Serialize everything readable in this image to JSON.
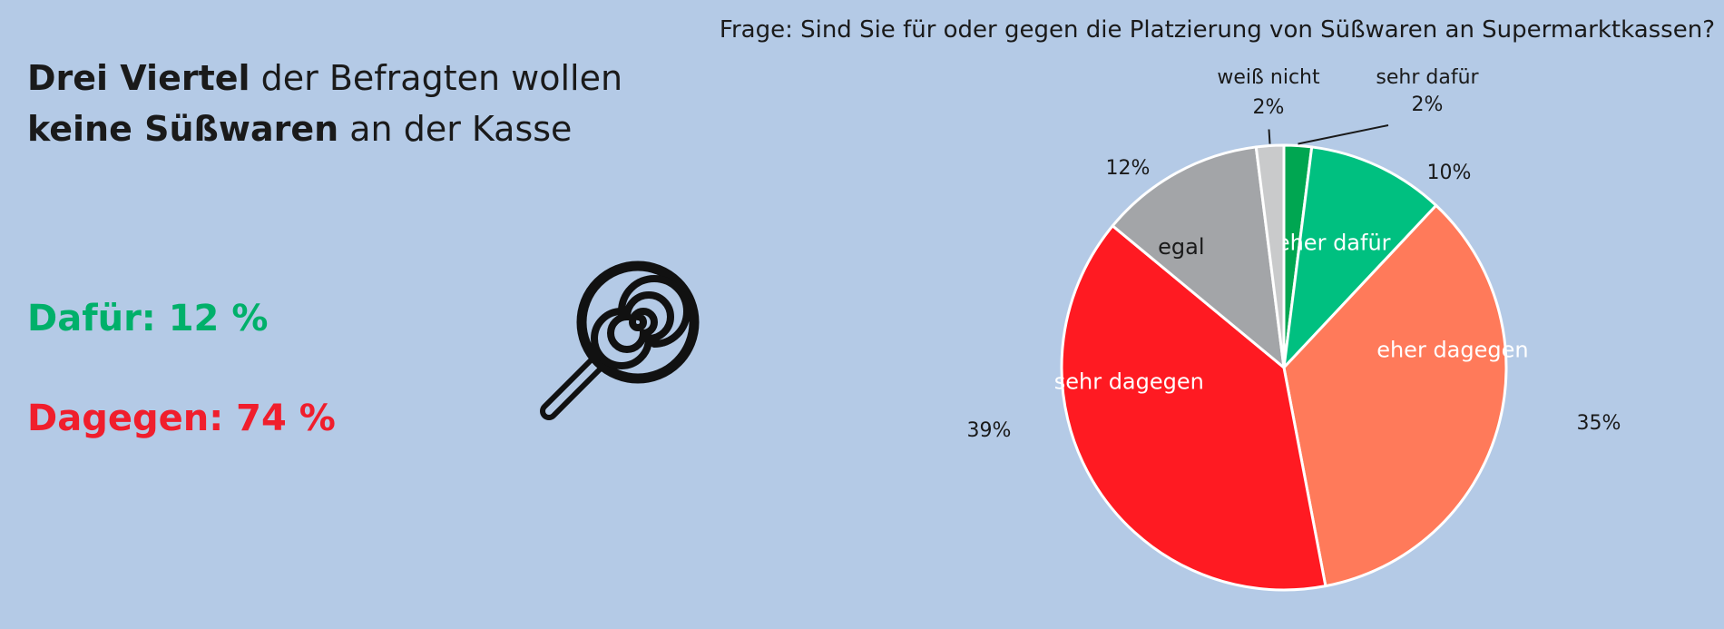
{
  "headline": {
    "part1_bold": "Drei Viertel",
    "part1_rest": " der Befragten wollen",
    "part2_bold": "keine Süßwaren",
    "part2_rest": " an der Kasse"
  },
  "stats": {
    "for": "Dafür: 12 %",
    "against": "Dagegen: 74 %",
    "for_color": "#00b06a",
    "against_color": "#f01e2c"
  },
  "icon": "lollipop-icon",
  "chart_data": {
    "type": "pie",
    "title": "Frage: Sind Sie für oder gegen die Platzierung von Süßwaren an Supermarktkassen?",
    "start": "top",
    "direction": "clockwise",
    "slices": [
      {
        "label": "sehr dafür",
        "value": 2,
        "value_label": "2%",
        "color": "#00a651",
        "label_position": "outside",
        "label_color": "#1a1a1a"
      },
      {
        "label": "eher dafür",
        "value": 10,
        "value_label": "10%",
        "color": "#00c080",
        "label_position": "inside",
        "label_color": "#ffffff"
      },
      {
        "label": "eher dagegen",
        "value": 35,
        "value_label": "35%",
        "color": "#ff7a5a",
        "label_position": "inside",
        "label_color": "#ffffff"
      },
      {
        "label": "sehr dagegen",
        "value": 39,
        "value_label": "39%",
        "color": "#ff1a22",
        "label_position": "inside",
        "label_color": "#ffffff"
      },
      {
        "label": "egal",
        "value": 12,
        "value_label": "12%",
        "color": "#a3a5a8",
        "label_position": "inside",
        "label_color": "#1a1a1a"
      },
      {
        "label": "weiß nicht",
        "value": 2,
        "value_label": "2%",
        "color": "#c9cacb",
        "label_position": "outside",
        "label_color": "#1a1a1a"
      }
    ]
  }
}
